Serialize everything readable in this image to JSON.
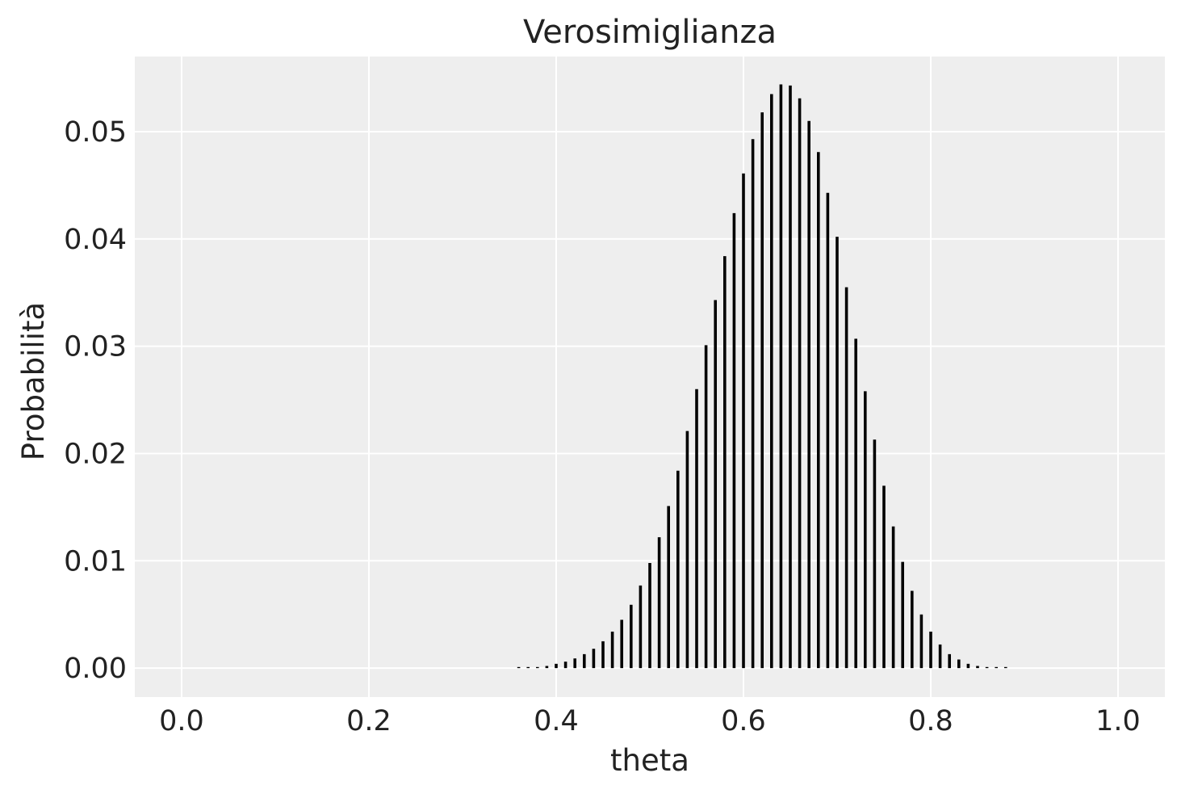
{
  "chart_data": {
    "type": "bar",
    "title": "Verosimiglianza",
    "xlabel": "theta",
    "ylabel": "Probabilità",
    "xlim": [
      -0.05,
      1.05
    ],
    "ylim": [
      -0.0027,
      0.057
    ],
    "xticks": [
      0.0,
      0.2,
      0.4,
      0.6,
      0.8,
      1.0
    ],
    "xtick_labels": [
      "0.0",
      "0.2",
      "0.4",
      "0.6",
      "0.8",
      "1.0"
    ],
    "yticks": [
      0.0,
      0.01,
      0.02,
      0.03,
      0.04,
      0.05
    ],
    "ytick_labels": [
      "0.00",
      "0.01",
      "0.02",
      "0.03",
      "0.04",
      "0.05"
    ],
    "grid": true,
    "background": "#eeeeee",
    "bar_color": "#000000",
    "x": [
      0.36,
      0.37,
      0.38,
      0.39,
      0.4,
      0.41,
      0.42,
      0.43,
      0.44,
      0.45,
      0.46,
      0.47,
      0.48,
      0.49,
      0.5,
      0.51,
      0.52,
      0.53,
      0.54,
      0.55,
      0.56,
      0.57,
      0.58,
      0.59,
      0.6,
      0.61,
      0.62,
      0.63,
      0.64,
      0.65,
      0.66,
      0.67,
      0.68,
      0.69,
      0.7,
      0.71,
      0.72,
      0.73,
      0.74,
      0.75,
      0.76,
      0.77,
      0.78,
      0.79,
      0.8,
      0.81,
      0.82,
      0.83,
      0.84,
      0.85,
      0.86,
      0.87,
      0.88
    ],
    "values": [
      0.0001,
      0.0001,
      0.0001,
      0.0002,
      0.0004,
      0.0006,
      0.0009,
      0.0013,
      0.0018,
      0.0025,
      0.0034,
      0.0045,
      0.0059,
      0.0077,
      0.0098,
      0.0122,
      0.0151,
      0.0184,
      0.0221,
      0.026,
      0.0301,
      0.0343,
      0.0384,
      0.0424,
      0.0461,
      0.0493,
      0.0518,
      0.0535,
      0.0544,
      0.0543,
      0.0531,
      0.051,
      0.0481,
      0.0443,
      0.0402,
      0.0355,
      0.0307,
      0.0258,
      0.0213,
      0.017,
      0.0132,
      0.0099,
      0.0072,
      0.005,
      0.0034,
      0.0022,
      0.0013,
      0.0008,
      0.0004,
      0.0002,
      0.0001,
      0.0001,
      0.0001
    ]
  }
}
